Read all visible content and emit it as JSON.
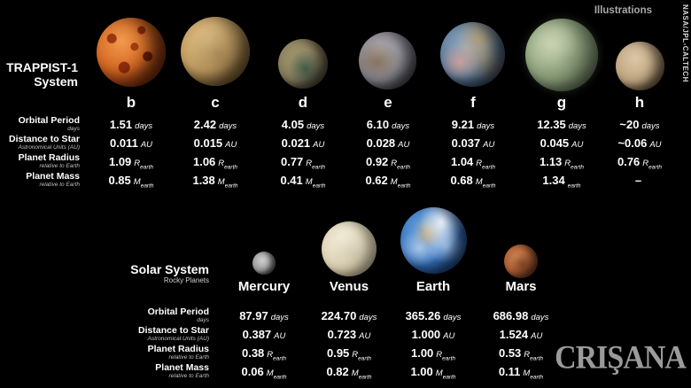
{
  "credits": {
    "illustrations_label": "Illustrations",
    "agency_credit": "NASA/JPL-CALTECH",
    "watermark": "CRIŞANA"
  },
  "row_labels": [
    {
      "label": "Orbital Period",
      "sublabel": "days"
    },
    {
      "label": "Distance to Star",
      "sublabel": "Astronomical Units (AU)"
    },
    {
      "label": "Planet Radius",
      "sublabel": "relative to Earth"
    },
    {
      "label": "Planet Mass",
      "sublabel": "relative to Earth"
    }
  ],
  "trappist": {
    "title": "TRAPPIST-1",
    "subtitle": "System",
    "planets": [
      {
        "name": "b",
        "period": "1.51",
        "period_unit": "days",
        "distance": "0.011",
        "distance_unit": "AU",
        "radius": "1.09",
        "radius_unit": "R",
        "radius_sub": "earth",
        "mass": "0.85",
        "mass_unit": "M",
        "mass_sub": "earth"
      },
      {
        "name": "c",
        "period": "2.42",
        "period_unit": "days",
        "distance": "0.015",
        "distance_unit": "AU",
        "radius": "1.06",
        "radius_unit": "R",
        "radius_sub": "earth",
        "mass": "1.38",
        "mass_unit": "M",
        "mass_sub": "earth"
      },
      {
        "name": "d",
        "period": "4.05",
        "period_unit": "days",
        "distance": "0.021",
        "distance_unit": "AU",
        "radius": "0.77",
        "radius_unit": "R",
        "radius_sub": "earth",
        "mass": "0.41",
        "mass_unit": "M",
        "mass_sub": "earth"
      },
      {
        "name": "e",
        "period": "6.10",
        "period_unit": "days",
        "distance": "0.028",
        "distance_unit": "AU",
        "radius": "0.92",
        "radius_unit": "R",
        "radius_sub": "earth",
        "mass": "0.62",
        "mass_unit": "M",
        "mass_sub": "earth"
      },
      {
        "name": "f",
        "period": "9.21",
        "period_unit": "days",
        "distance": "0.037",
        "distance_unit": "AU",
        "radius": "1.04",
        "radius_unit": "R",
        "radius_sub": "earth",
        "mass": "0.68",
        "mass_unit": "M",
        "mass_sub": "earth"
      },
      {
        "name": "g",
        "period": "12.35",
        "period_unit": "days",
        "distance": "0.045",
        "distance_unit": "AU",
        "radius": "1.13",
        "radius_unit": "R",
        "radius_sub": "earth",
        "mass": "1.34",
        "mass_unit": "",
        "mass_sub": "earth"
      },
      {
        "name": "h",
        "period": "~20",
        "period_unit": "days",
        "distance": "~0.06",
        "distance_unit": "AU",
        "radius": "0.76",
        "radius_unit": "R",
        "radius_sub": "earth",
        "mass": "–",
        "mass_unit": "",
        "mass_sub": ""
      }
    ]
  },
  "solar": {
    "title": "Solar System",
    "subtitle": "Rocky Planets",
    "planets": [
      {
        "name": "Mercury",
        "period": "87.97",
        "period_unit": "days",
        "distance": "0.387",
        "distance_unit": "AU",
        "radius": "0.38",
        "radius_unit": "R",
        "radius_sub": "earth",
        "mass": "0.06",
        "mass_unit": "M",
        "mass_sub": "earth"
      },
      {
        "name": "Venus",
        "period": "224.70",
        "period_unit": "days",
        "distance": "0.723",
        "distance_unit": "AU",
        "radius": "0.95",
        "radius_unit": "R",
        "radius_sub": "earth",
        "mass": "0.82",
        "mass_unit": "M",
        "mass_sub": "earth"
      },
      {
        "name": "Earth",
        "period": "365.26",
        "period_unit": "days",
        "distance": "1.000",
        "distance_unit": "AU",
        "radius": "1.00",
        "radius_unit": "R",
        "radius_sub": "earth",
        "mass": "1.00",
        "mass_unit": "M",
        "mass_sub": "earth"
      },
      {
        "name": "Mars",
        "period": "686.98",
        "period_unit": "days",
        "distance": "1.524",
        "distance_unit": "AU",
        "radius": "0.53",
        "radius_unit": "R",
        "radius_sub": "earth",
        "mass": "0.11",
        "mass_unit": "M",
        "mass_sub": "earth"
      }
    ]
  },
  "chart_data": [
    {
      "type": "table",
      "title": "TRAPPIST-1 System",
      "columns": [
        "b",
        "c",
        "d",
        "e",
        "f",
        "g",
        "h"
      ],
      "row_labels": [
        "Orbital Period (days)",
        "Distance to Star (AU)",
        "Planet Radius (relative to Earth)",
        "Planet Mass (relative to Earth)"
      ],
      "orbital_period_days": [
        "1.51",
        "2.42",
        "4.05",
        "6.10",
        "9.21",
        "12.35",
        "~20"
      ],
      "distance_au": [
        "0.011",
        "0.015",
        "0.021",
        "0.028",
        "0.037",
        "0.045",
        "~0.06"
      ],
      "radius_rearth": [
        "1.09",
        "1.06",
        "0.77",
        "0.92",
        "1.04",
        "1.13",
        "0.76"
      ],
      "mass_mearth": [
        "0.85",
        "1.38",
        "0.41",
        "0.62",
        "0.68",
        "1.34",
        "–"
      ]
    },
    {
      "type": "table",
      "title": "Solar System Rocky Planets",
      "columns": [
        "Mercury",
        "Venus",
        "Earth",
        "Mars"
      ],
      "row_labels": [
        "Orbital Period (days)",
        "Distance to Star (AU)",
        "Planet Radius (relative to Earth)",
        "Planet Mass (relative to Earth)"
      ],
      "orbital_period_days": [
        "87.97",
        "224.70",
        "365.26",
        "686.98"
      ],
      "distance_au": [
        "0.387",
        "0.723",
        "1.000",
        "1.524"
      ],
      "radius_rearth": [
        "0.38",
        "0.95",
        "1.00",
        "0.53"
      ],
      "mass_mearth": [
        "0.06",
        "0.82",
        "1.00",
        "0.11"
      ]
    }
  ]
}
